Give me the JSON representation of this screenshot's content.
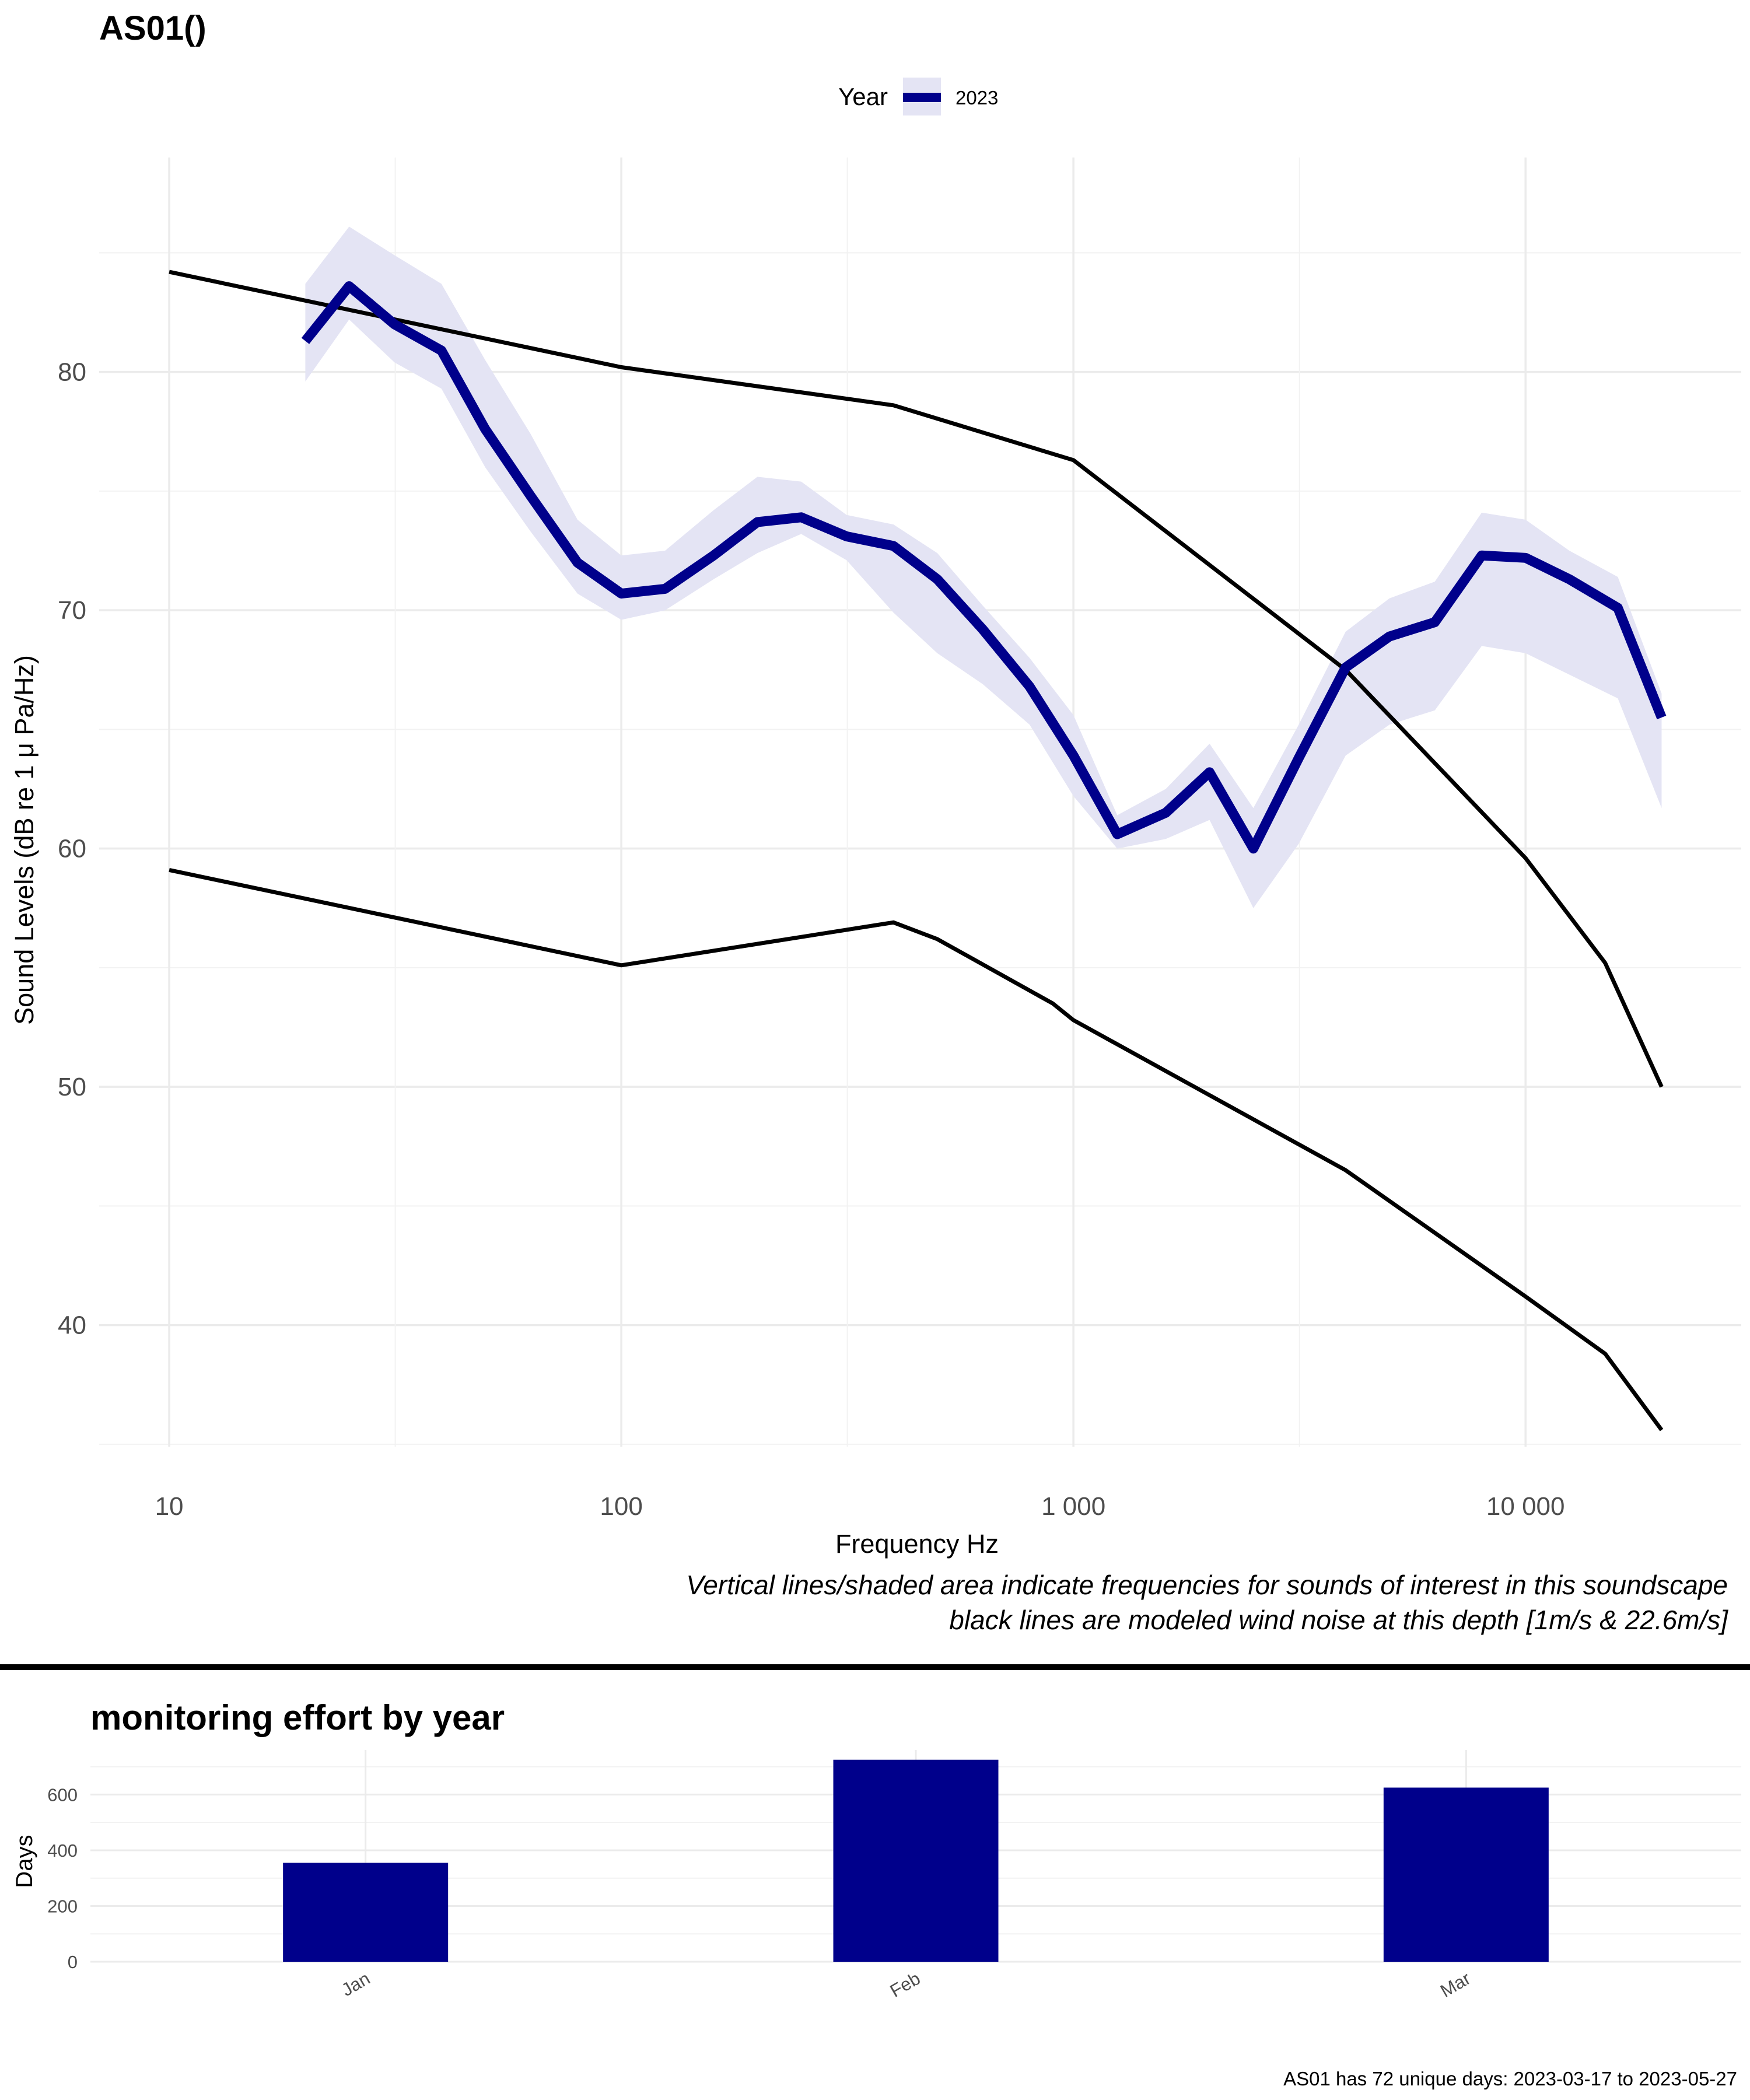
{
  "chart_data": [
    {
      "type": "line",
      "title": "AS01()",
      "xlabel": "Frequency Hz",
      "ylabel": "Sound Levels (dB re 1 μ Pa/Hz)",
      "x_scale": "log10",
      "xlim": [
        7,
        30000
      ],
      "ylim": [
        34.9,
        89
      ],
      "x_ticks": [
        10,
        100,
        1000,
        10000
      ],
      "x_tick_labels": [
        "10",
        "100",
        "1 000",
        "10 000"
      ],
      "y_ticks": [
        40,
        50,
        60,
        70,
        80
      ],
      "y_tick_labels": [
        "40",
        "50",
        "60",
        "70",
        "80"
      ],
      "grid": true,
      "legend": {
        "title": "Year",
        "position": "top",
        "entries": [
          "2023"
        ]
      },
      "series": [
        {
          "name": "2023",
          "color": "#00008B",
          "band_color": "#E4E4F4",
          "x": [
            20,
            25,
            31.5,
            40,
            50,
            63,
            80,
            100,
            125,
            160,
            200,
            250,
            315,
            400,
            500,
            630,
            800,
            1000,
            1250,
            1600,
            2000,
            2500,
            3150,
            4000,
            5000,
            6300,
            8000,
            10000,
            12500,
            16000,
            20000
          ],
          "values": [
            81.3,
            83.6,
            82.0,
            80.9,
            77.6,
            74.8,
            72.0,
            70.7,
            70.9,
            72.3,
            73.7,
            73.9,
            73.1,
            72.7,
            71.3,
            69.2,
            66.8,
            63.9,
            60.6,
            61.5,
            63.2,
            60.0,
            63.8,
            67.6,
            68.9,
            69.5,
            72.3,
            72.2,
            71.3,
            70.1,
            65.5
          ],
          "lower": [
            79.6,
            82.2,
            80.4,
            79.3,
            76.0,
            73.3,
            70.7,
            69.6,
            70.0,
            71.3,
            72.4,
            73.2,
            72.1,
            69.9,
            68.2,
            66.9,
            65.2,
            62.2,
            60.0,
            60.4,
            61.2,
            57.5,
            60.2,
            63.9,
            65.2,
            65.8,
            68.5,
            68.2,
            67.3,
            66.3,
            61.7
          ],
          "upper": [
            83.7,
            86.1,
            84.9,
            83.7,
            80.5,
            77.4,
            73.8,
            72.3,
            72.5,
            74.2,
            75.6,
            75.4,
            74.0,
            73.6,
            72.4,
            70.2,
            68.0,
            65.6,
            61.4,
            62.5,
            64.4,
            61.7,
            65.2,
            69.1,
            70.5,
            71.2,
            74.1,
            73.8,
            72.5,
            71.4,
            66.5
          ]
        },
        {
          "name": "",
          "color": "#000000",
          "x": [
            10,
            100,
            400,
            1000,
            4000,
            10000,
            15000,
            20000
          ],
          "values": [
            84.2,
            80.2,
            78.6,
            76.3,
            67.5,
            59.6,
            55.2,
            50.0
          ]
        },
        {
          "name": "",
          "color": "#000000",
          "x": [
            10,
            100,
            400,
            500,
            900,
            1000,
            4000,
            10000,
            15000,
            20000
          ],
          "values": [
            59.1,
            55.1,
            56.9,
            56.2,
            53.5,
            52.8,
            46.5,
            41.2,
            38.8,
            35.6
          ]
        }
      ],
      "annotations": [
        "Vertical lines/shaded area indicate frequencies for sounds of interest in this soundscape",
        "black lines are modeled wind noise at this depth [1m/s & 22.6m/s]"
      ]
    },
    {
      "type": "bar",
      "title": "monitoring effort by year",
      "xlabel": "",
      "ylabel": "Days",
      "categories": [
        "Jan",
        "Feb",
        "Mar"
      ],
      "values": [
        355,
        725,
        625
      ],
      "ylim": [
        0,
        760
      ],
      "y_ticks": [
        0,
        200,
        400,
        600
      ],
      "y_tick_labels": [
        "0",
        "200",
        "400",
        "600"
      ],
      "grid": true,
      "bar_color": "#00008B",
      "caption": "AS01 has 72 unique days: 2023-03-17 to 2023-05-27"
    }
  ]
}
